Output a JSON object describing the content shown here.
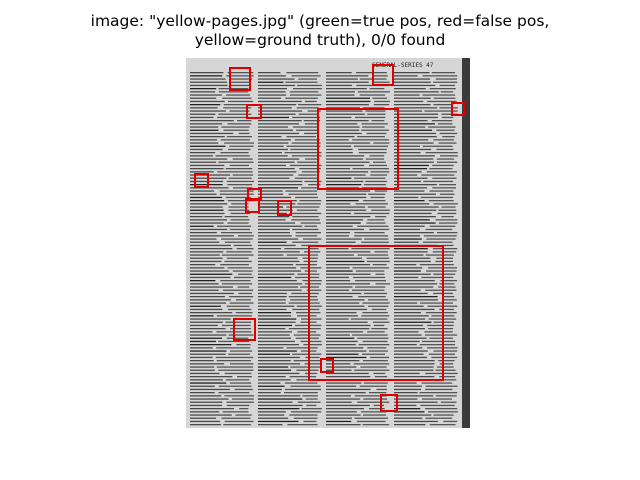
{
  "figure": {
    "title_line1": "image: \"yellow-pages.jpg\" (green=true pos, red=false pos,",
    "title_line2": "yellow=ground truth), 0/0 found"
  },
  "colors": {
    "false_positive": "#e00000",
    "true_positive": "#00a000",
    "ground_truth": "#e0e000",
    "page_paper": "#d8d8d8",
    "page_ink": "#3a3a3a"
  },
  "page_header_text": "GENERAL-SERIES 47"
}
